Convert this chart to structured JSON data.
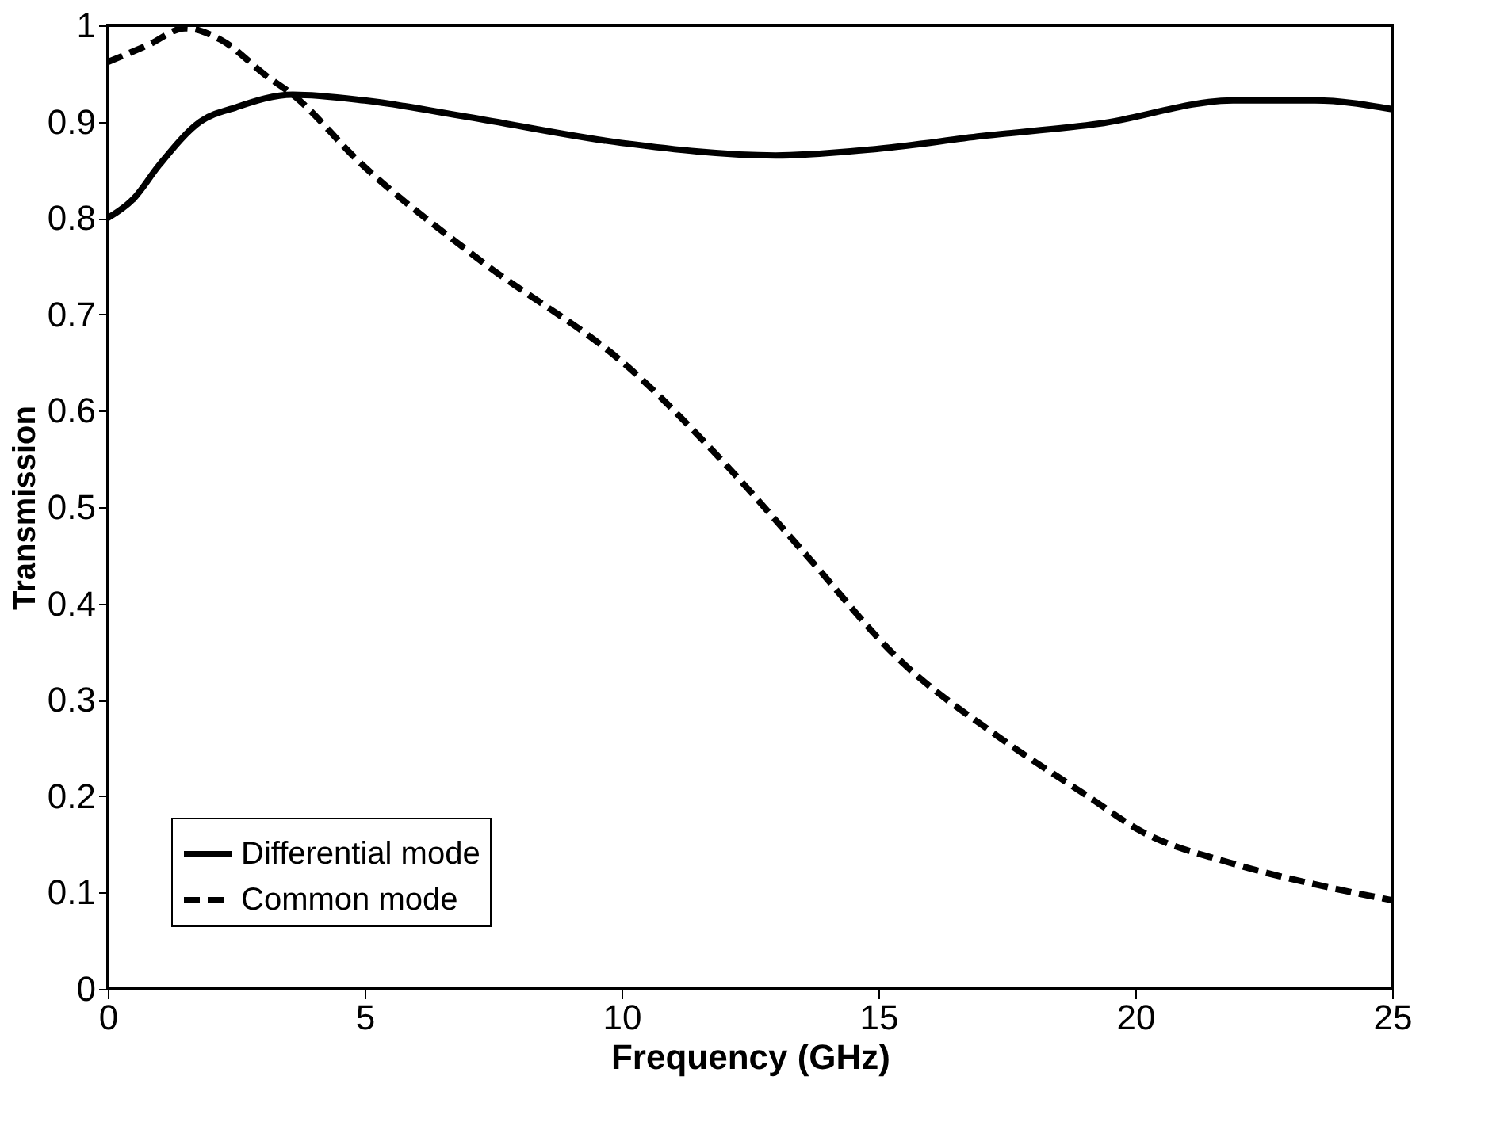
{
  "chart_data": {
    "type": "line",
    "xlabel": "Frequency (GHz)",
    "ylabel": "Transmission",
    "xlim": [
      0,
      25
    ],
    "ylim": [
      0,
      1
    ],
    "xticks": [
      0,
      5,
      10,
      15,
      20,
      25
    ],
    "yticks": [
      0,
      0.1,
      0.2,
      0.3,
      0.4,
      0.5,
      0.6,
      0.7,
      0.8,
      0.9,
      1
    ],
    "grid": false,
    "legend": "bottom left",
    "marker": "none",
    "series": [
      {
        "name": "Differential mode",
        "color": "#000000",
        "line_style": "solid",
        "x": [
          0,
          0.5,
          1,
          1.8,
          2.5,
          3.6,
          5,
          7,
          10,
          13,
          15,
          17,
          19.3,
          21.9,
          23.5,
          25
        ],
        "values": [
          0.8,
          0.82,
          0.855,
          0.9,
          0.915,
          0.928,
          0.922,
          0.905,
          0.878,
          0.865,
          0.872,
          0.885,
          0.898,
          0.922,
          0.922,
          0.913
        ]
      },
      {
        "name": "Common mode",
        "color": "#000000",
        "line_style": "dashed",
        "x": [
          0,
          0.8,
          1.5,
          2.2,
          3.1,
          3.6,
          4.9,
          7.2,
          10.2,
          12.1,
          13.6,
          15.4,
          17.3,
          19.1,
          20.1,
          21.9,
          23.8,
          25
        ],
        "values": [
          0.962,
          0.98,
          0.997,
          0.985,
          0.947,
          0.928,
          0.858,
          0.758,
          0.642,
          0.54,
          0.45,
          0.342,
          0.263,
          0.199,
          0.164,
          0.13,
          0.105,
          0.092
        ]
      }
    ]
  }
}
